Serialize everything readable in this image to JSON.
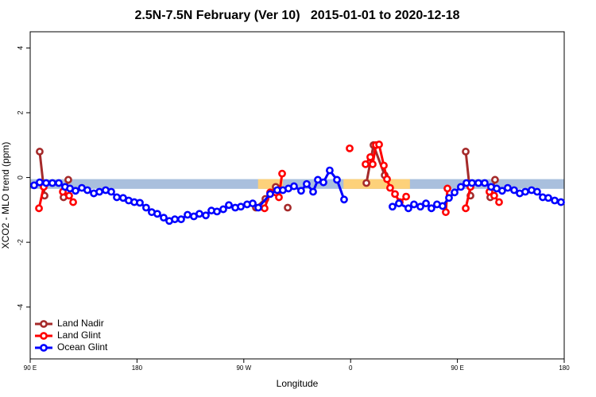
{
  "chart_data": {
    "type": "line",
    "title": "2.5N-7.5N February (Ver 10)   2015-01-01 to 2020-12-18",
    "xlabel": "Longitude",
    "ylabel": "XCO2 - MLO trend (ppm)",
    "xlim": [
      90,
      540
    ],
    "ylim": [
      -5.6,
      4.5
    ],
    "xticks": [
      {
        "value": 90,
        "label": "90 E"
      },
      180,
      {
        "value": 270,
        "label": "90 W"
      },
      {
        "value": 360,
        "label": "0"
      },
      {
        "value": 450,
        "label": "90 E"
      },
      {
        "value": 540,
        "label": "180"
      }
    ],
    "yticks": [
      -4,
      -2,
      0,
      2,
      4
    ],
    "grid": false,
    "legend": "lower left",
    "bands": [
      {
        "color": "#a9bfdd",
        "x": [
          90,
          540
        ],
        "y": [
          -0.35,
          -0.05
        ]
      },
      {
        "color": "#fdd17a",
        "x": [
          282,
          303
        ],
        "y": [
          -0.35,
          -0.05
        ]
      },
      {
        "color": "#fdd17a",
        "x": [
          354,
          410
        ],
        "y": [
          -0.35,
          -0.05
        ]
      }
    ],
    "series": [
      {
        "name": "Land Nadir",
        "color": "#a52a2a",
        "x": [
          98.0,
          102.1,
          null,
          118.1,
          122.1,
          null,
          280.2,
          288.2,
          296.9,
          null,
          307.0,
          null,
          373.3,
          379.3,
          388.7,
          null,
          457.0,
          461.0,
          null,
          477.7,
          481.7
        ],
        "values": [
          0.8,
          -0.56,
          null,
          -0.61,
          -0.07,
          null,
          -0.93,
          -0.66,
          -0.29,
          null,
          -0.93,
          null,
          -0.17,
          1.0,
          0.07,
          null,
          0.8,
          -0.56,
          null,
          -0.61,
          -0.07
        ]
      },
      {
        "name": "Land Glint",
        "color": "#ff0000",
        "x": [
          97.4,
          101.4,
          null,
          117.5,
          122.8,
          126.2,
          null,
          287.5,
          292.2,
          296.9,
          299.6,
          302.3,
          null,
          359.2,
          null,
          372.6,
          376.6,
          378.6,
          381.3,
          384.0,
          388.0,
          390.7,
          393.3,
          397.4,
          401.4,
          406.8,
          null,
          440.2,
          441.6,
          null,
          457.0,
          461.0,
          null,
          477.0,
          481.0,
          485.1
        ],
        "values": [
          -0.95,
          -0.29,
          null,
          -0.44,
          -0.56,
          -0.76,
          null,
          -0.95,
          -0.46,
          -0.46,
          -0.61,
          0.12,
          null,
          0.9,
          null,
          0.41,
          0.63,
          0.41,
          1.0,
          1.02,
          0.37,
          -0.05,
          -0.32,
          -0.51,
          -0.76,
          -0.59,
          null,
          -1.07,
          -0.34,
          null,
          -0.95,
          -0.29,
          null,
          -0.44,
          -0.56,
          -0.76
        ]
      },
      {
        "name": "Ocean Glint",
        "color": "#0000ff",
        "x": [
          93.3,
          98.0,
          103.4,
          108.7,
          114.1,
          119.4,
          123.5,
          128.2,
          133.5,
          138.2,
          143.6,
          148.3,
          153.6,
          158.3,
          163.0,
          168.3,
          173.0,
          177.7,
          182.4,
          187.7,
          192.4,
          197.1,
          202.5,
          207.2,
          211.9,
          217.2,
          222.6,
          227.9,
          232.6,
          238.0,
          242.7,
          247.4,
          252.7,
          257.4,
          262.8,
          267.5,
          272.8,
          277.5,
          282.2,
          292.2,
          298.2,
          302.9,
          307.6,
          312.3,
          318.3,
          323.0,
          328.4,
          332.4,
          337.1,
          342.4,
          348.5,
          354.5,
          null,
          395.3,
          400.7,
          408.7,
          413.4,
          418.8,
          423.5,
          428.1,
          432.8,
          437.5,
          442.9,
          447.6,
          452.9,
          457.6,
          462.3,
          467.7,
          473.0,
          478.4,
          483.1,
          487.7,
          492.4,
          497.8,
          502.5,
          507.2,
          512.5,
          517.2,
          521.9,
          526.6,
          532.0,
          537.3
        ],
        "values": [
          -0.24,
          -0.15,
          -0.17,
          -0.17,
          -0.17,
          -0.29,
          -0.34,
          -0.41,
          -0.32,
          -0.39,
          -0.49,
          -0.44,
          -0.39,
          -0.44,
          -0.61,
          -0.63,
          -0.71,
          -0.76,
          -0.78,
          -0.93,
          -1.07,
          -1.12,
          -1.24,
          -1.34,
          -1.29,
          -1.29,
          -1.15,
          -1.2,
          -1.12,
          -1.17,
          -1.02,
          -1.05,
          -0.98,
          -0.85,
          -0.93,
          -0.9,
          -0.83,
          -0.8,
          -0.93,
          -0.51,
          -0.39,
          -0.39,
          -0.34,
          -0.27,
          -0.41,
          -0.2,
          -0.44,
          -0.07,
          -0.15,
          0.22,
          -0.07,
          -0.68,
          null,
          -0.9,
          -0.8,
          -0.95,
          -0.83,
          -0.9,
          -0.8,
          -0.95,
          -0.83,
          -0.88,
          -0.63,
          -0.46,
          -0.29,
          -0.17,
          -0.17,
          -0.17,
          -0.17,
          -0.29,
          -0.34,
          -0.41,
          -0.32,
          -0.39,
          -0.49,
          -0.44,
          -0.39,
          -0.44,
          -0.61,
          -0.63,
          -0.71,
          -0.76
        ]
      }
    ]
  }
}
